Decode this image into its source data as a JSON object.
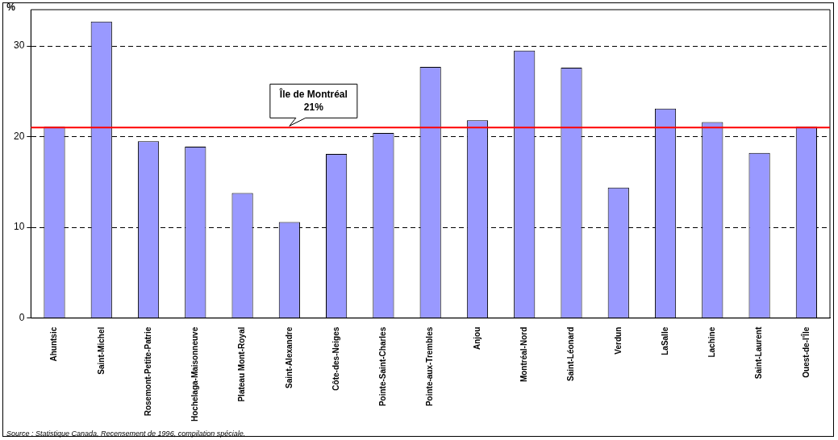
{
  "chart_data": {
    "type": "bar",
    "ylabel": "%",
    "categories": [
      "Ahuntsic",
      "Saint-Michel",
      "Rosemont-Petite-Patrie",
      "Hochelaga-Maisonneuve",
      "Plateau Mont-Royal",
      "Saint-Alexandre",
      "Côte-des-Neiges",
      "Pointe-Saint-Charles",
      "Pointe-aux-Trembles",
      "Anjou",
      "Montréal-Nord",
      "Saint-Léonard",
      "Verdun",
      "LaSalle",
      "Lachine",
      "Saint-Laurent",
      "Ouest-de-l'Île"
    ],
    "values": [
      21.1,
      32.7,
      19.5,
      18.9,
      13.8,
      10.6,
      18.1,
      20.4,
      27.7,
      21.8,
      29.5,
      27.6,
      14.4,
      23.1,
      21.6,
      18.2,
      21.1
    ],
    "color": "#9999ff",
    "ylim": [
      0,
      34
    ],
    "yticks": [
      0,
      10,
      20,
      30
    ],
    "grid": "y",
    "legend": false,
    "ref_lines": [
      {
        "axis": "y",
        "value": 21,
        "color": "#ff0000"
      }
    ],
    "annotations": [
      {
        "text": "Île de Montréal\n21%",
        "x": "Saint-Alexandre",
        "y": 21
      },
      "Source : Statistique Canada, Recensement de 1996, compilation spéciale."
    ]
  }
}
